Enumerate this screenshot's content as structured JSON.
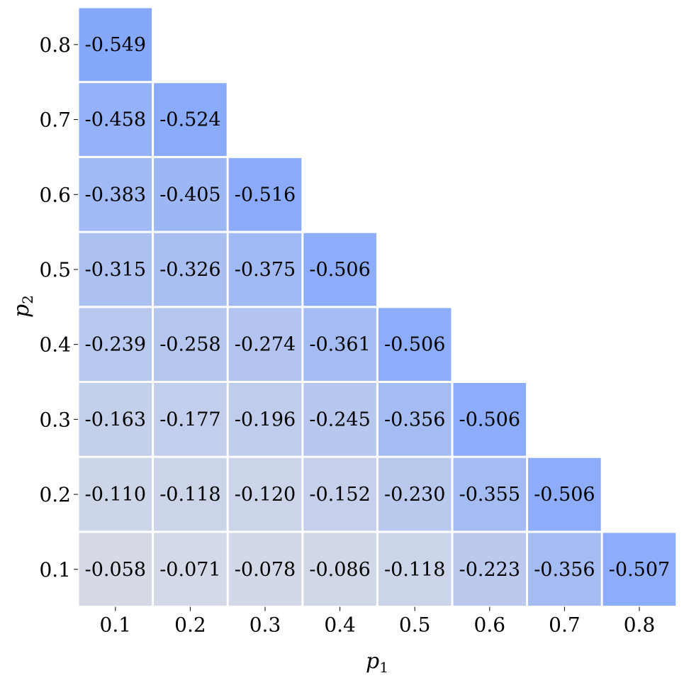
{
  "chart_data": {
    "type": "heatmap",
    "title": "",
    "xlabel": "p",
    "xlabel_subscript": "1",
    "ylabel": "p",
    "ylabel_subscript": "2",
    "x_categories": [
      "0.1",
      "0.2",
      "0.3",
      "0.4",
      "0.5",
      "0.6",
      "0.7",
      "0.8"
    ],
    "y_categories": [
      "0.1",
      "0.2",
      "0.3",
      "0.4",
      "0.5",
      "0.6",
      "0.7",
      "0.8"
    ],
    "mask": "upper-triangle (only cells with p1 <= p2 shown)",
    "colormap": {
      "low": "#d5dae6",
      "high": "#86a8fb",
      "vmin": -0.549,
      "vmax": -0.058
    },
    "cells": [
      {
        "x": "0.1",
        "y": "0.8",
        "value": "-0.549"
      },
      {
        "x": "0.1",
        "y": "0.7",
        "value": "-0.458"
      },
      {
        "x": "0.2",
        "y": "0.7",
        "value": "-0.524"
      },
      {
        "x": "0.1",
        "y": "0.6",
        "value": "-0.383"
      },
      {
        "x": "0.2",
        "y": "0.6",
        "value": "-0.405"
      },
      {
        "x": "0.3",
        "y": "0.6",
        "value": "-0.516"
      },
      {
        "x": "0.1",
        "y": "0.5",
        "value": "-0.315"
      },
      {
        "x": "0.2",
        "y": "0.5",
        "value": "-0.326"
      },
      {
        "x": "0.3",
        "y": "0.5",
        "value": "-0.375"
      },
      {
        "x": "0.4",
        "y": "0.5",
        "value": "-0.506"
      },
      {
        "x": "0.1",
        "y": "0.4",
        "value": "-0.239"
      },
      {
        "x": "0.2",
        "y": "0.4",
        "value": "-0.258"
      },
      {
        "x": "0.3",
        "y": "0.4",
        "value": "-0.274"
      },
      {
        "x": "0.4",
        "y": "0.4",
        "value": "-0.361"
      },
      {
        "x": "0.5",
        "y": "0.4",
        "value": "-0.506"
      },
      {
        "x": "0.1",
        "y": "0.3",
        "value": "-0.163"
      },
      {
        "x": "0.2",
        "y": "0.3",
        "value": "-0.177"
      },
      {
        "x": "0.3",
        "y": "0.3",
        "value": "-0.196"
      },
      {
        "x": "0.4",
        "y": "0.3",
        "value": "-0.245"
      },
      {
        "x": "0.5",
        "y": "0.3",
        "value": "-0.356"
      },
      {
        "x": "0.6",
        "y": "0.3",
        "value": "-0.506"
      },
      {
        "x": "0.1",
        "y": "0.2",
        "value": "-0.110"
      },
      {
        "x": "0.2",
        "y": "0.2",
        "value": "-0.118"
      },
      {
        "x": "0.3",
        "y": "0.2",
        "value": "-0.120"
      },
      {
        "x": "0.4",
        "y": "0.2",
        "value": "-0.152"
      },
      {
        "x": "0.5",
        "y": "0.2",
        "value": "-0.230"
      },
      {
        "x": "0.6",
        "y": "0.2",
        "value": "-0.355"
      },
      {
        "x": "0.7",
        "y": "0.2",
        "value": "-0.506"
      },
      {
        "x": "0.1",
        "y": "0.1",
        "value": "-0.058"
      },
      {
        "x": "0.2",
        "y": "0.1",
        "value": "-0.071"
      },
      {
        "x": "0.3",
        "y": "0.1",
        "value": "-0.078"
      },
      {
        "x": "0.4",
        "y": "0.1",
        "value": "-0.086"
      },
      {
        "x": "0.5",
        "y": "0.1",
        "value": "-0.118"
      },
      {
        "x": "0.6",
        "y": "0.1",
        "value": "-0.223"
      },
      {
        "x": "0.7",
        "y": "0.1",
        "value": "-0.356"
      },
      {
        "x": "0.8",
        "y": "0.1",
        "value": "-0.507"
      }
    ],
    "grid": false,
    "legend": "none"
  }
}
